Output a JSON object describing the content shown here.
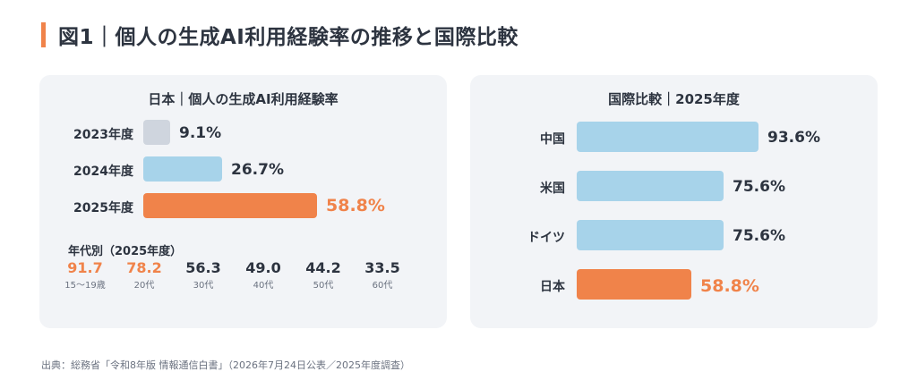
{
  "title": "図1｜個人の生成AI利用経験率の推移と国際比較",
  "colors": {
    "accent": "#f0834a",
    "blue": "#a7d3ea",
    "gray": "#cfd5de",
    "panel": "#f2f4f7"
  },
  "left_panel": {
    "title": "日本｜個人の生成AI利用経験率",
    "age_title": "年代別（2025年度）",
    "age_groups": [
      {
        "value": "91.7",
        "label": "15〜19歳",
        "highlight": true
      },
      {
        "value": "78.2",
        "label": "20代",
        "highlight": true
      },
      {
        "value": "56.3",
        "label": "30代",
        "highlight": false
      },
      {
        "value": "49.0",
        "label": "40代",
        "highlight": false
      },
      {
        "value": "44.2",
        "label": "50代",
        "highlight": false
      },
      {
        "value": "33.5",
        "label": "60代",
        "highlight": false
      }
    ]
  },
  "right_panel": {
    "title": "国際比較｜2025年度"
  },
  "chart_data": [
    {
      "type": "bar",
      "orientation": "horizontal",
      "title": "日本｜個人の生成AI利用経験率",
      "categories": [
        "2023年度",
        "2024年度",
        "2025年度"
      ],
      "values": [
        9.1,
        26.7,
        58.8
      ],
      "value_labels": [
        "9.1%",
        "26.7%",
        "58.8%"
      ],
      "bar_colors": [
        "#cfd5de",
        "#a7d3ea",
        "#f0834a"
      ],
      "highlight_index": 2,
      "xlim": [
        0,
        100
      ]
    },
    {
      "type": "bar",
      "orientation": "horizontal",
      "title": "国際比較｜2025年度",
      "categories": [
        "中国",
        "米国",
        "ドイツ",
        "日本"
      ],
      "values": [
        93.6,
        75.6,
        75.6,
        58.8
      ],
      "value_labels": [
        "93.6%",
        "75.6%",
        "75.6%",
        "58.8%"
      ],
      "bar_colors": [
        "#a7d3ea",
        "#a7d3ea",
        "#a7d3ea",
        "#f0834a"
      ],
      "highlight_index": 3,
      "xlim": [
        0,
        100
      ]
    }
  ],
  "source": "出典：総務省「令和8年版 情報通信白書」（2026年7月24日公表／2025年度調査）"
}
